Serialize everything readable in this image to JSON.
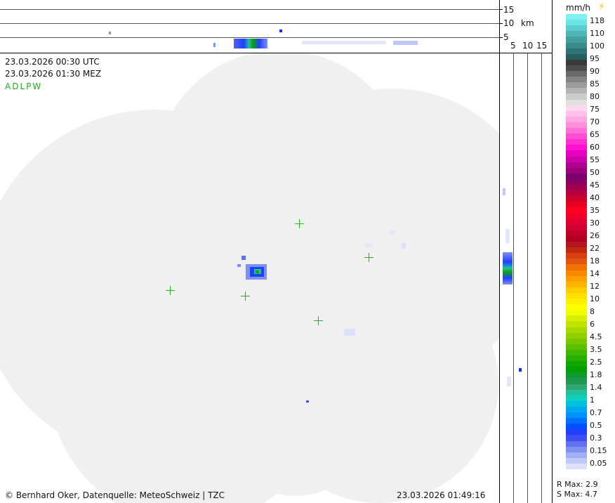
{
  "header": {
    "utc": "23.03.2026 00:30 UTC",
    "mez": "23.03.2026 01:30 MEZ",
    "code": "ADLPW"
  },
  "profile_top": {
    "ticks": [
      "15",
      "10",
      "5"
    ],
    "unit": "km"
  },
  "profile_side": {
    "ticks": [
      "5",
      "10",
      "15"
    ]
  },
  "legend": {
    "unit": "mm/h",
    "lightning_icon": "lightning-icon",
    "labels": [
      "118",
      "110",
      "100",
      "95",
      "90",
      "85",
      "80",
      "75",
      "70",
      "65",
      "60",
      "55",
      "50",
      "45",
      "40",
      "35",
      "30",
      "26",
      "22",
      "18",
      "14",
      "12",
      "10",
      "8",
      "6",
      "4.5",
      "3.5",
      "2.5",
      "1.8",
      "1.4",
      "1",
      "0.7",
      "0.5",
      "0.3",
      "0.15",
      "0.05"
    ],
    "colors": [
      "#7ff0f0",
      "#6ae4e4",
      "#5ccccc",
      "#4fb6b6",
      "#449f9f",
      "#3a8a8a",
      "#2f7474",
      "#285f5f",
      "#3a3a3a",
      "#4d4d4d",
      "#6a6a6a",
      "#848484",
      "#9c9c9c",
      "#b4b4b4",
      "#cccccc",
      "#e0e0e0",
      "#ffd8f0",
      "#ffc0ea",
      "#ffa8e4",
      "#ff90dc",
      "#ff70d8",
      "#ff4ed4",
      "#ff2ed0",
      "#ff10d0",
      "#e800c0",
      "#cc00aa",
      "#b00090",
      "#9a007c",
      "#7a0070",
      "#8c0060",
      "#a00050",
      "#b8003c",
      "#d0002c",
      "#e8001c",
      "#ff0020",
      "#f0002a",
      "#e00030",
      "#d00030",
      "#c00028",
      "#b40020",
      "#b0181e",
      "#c02810",
      "#d84010",
      "#e05810",
      "#f07000",
      "#f88800",
      "#ffa000",
      "#ffb400",
      "#ffcc00",
      "#ffe000",
      "#fff000",
      "#ffff00",
      "#f0ff00",
      "#d8f000",
      "#c0e400",
      "#a8d800",
      "#90d000",
      "#78c800",
      "#5cc000",
      "#40b800",
      "#28b000",
      "#10a800",
      "#00a000",
      "#109830",
      "#209850",
      "#30a870",
      "#20c0a0",
      "#10d0c0",
      "#00c0e0",
      "#00a8f0",
      "#0090ff",
      "#0070ff",
      "#0050ff",
      "#2040ff",
      "#4050f0",
      "#6070f0",
      "#8090f0",
      "#a0b0f4",
      "#c0c8f8",
      "#dde0fa"
    ],
    "r_max": "R Max: 2.9",
    "s_max": "S Max: 4.7"
  },
  "footer": {
    "copyright": "© Bernhard Oker, Datenquelle: MeteoSchweiz | TZC",
    "timestamp": "23.03.2026 01:49:16"
  },
  "markers": [
    {
      "name": "radar-site-1"
    },
    {
      "name": "radar-site-2"
    },
    {
      "name": "radar-site-3"
    },
    {
      "name": "radar-site-4"
    },
    {
      "name": "radar-site-5"
    }
  ]
}
